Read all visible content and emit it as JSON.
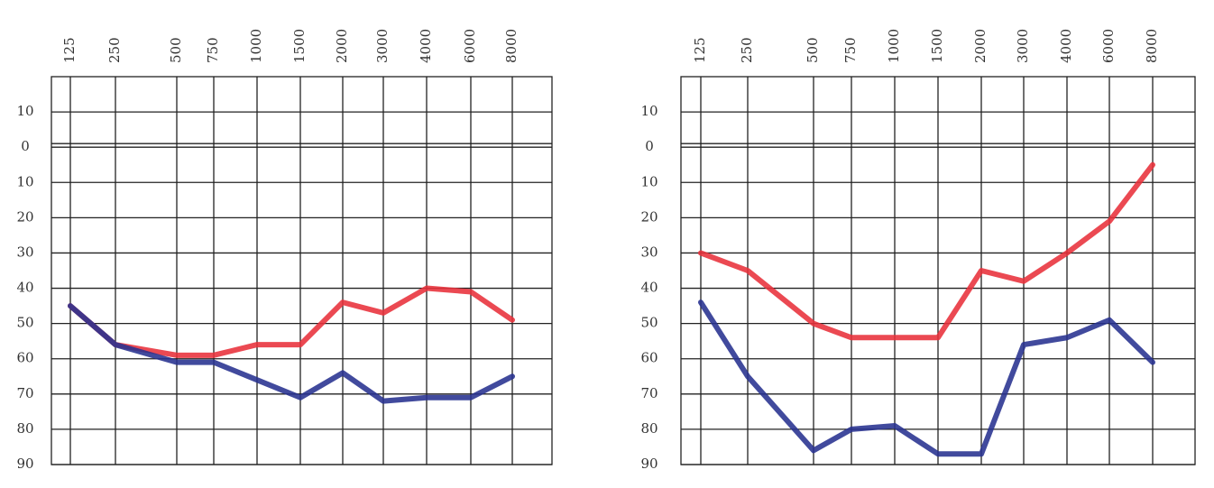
{
  "chart_data": [
    {
      "type": "line",
      "categories": [
        "125",
        "250",
        "500",
        "750",
        "1000",
        "1500",
        "2000",
        "3000",
        "4000",
        "6000",
        "8000"
      ],
      "series": [
        {
          "color": "#e8303a",
          "values": [
            45,
            56,
            59,
            59,
            56,
            56,
            44,
            47,
            40,
            41,
            49
          ]
        },
        {
          "color": "#27318f",
          "values": [
            45,
            56,
            61,
            61,
            66,
            71,
            64,
            72,
            71,
            71,
            65
          ]
        }
      ],
      "ylim": [
        -20,
        90
      ],
      "yinvert": true,
      "yticks": [
        {
          "value": -10,
          "label": "10"
        },
        0,
        10,
        20,
        30,
        40,
        50,
        60,
        70,
        80,
        90
      ],
      "grid": true
    },
    {
      "type": "line",
      "categories": [
        "125",
        "250",
        "500",
        "750",
        "1000",
        "1500",
        "2000",
        "3000",
        "4000",
        "6000",
        "8000"
      ],
      "series": [
        {
          "color": "#e8303a",
          "values": [
            30,
            35,
            50,
            54,
            54,
            54,
            35,
            38,
            30,
            21,
            5
          ]
        },
        {
          "color": "#27318f",
          "values": [
            44,
            65,
            86,
            80,
            79,
            87,
            87,
            56,
            54,
            49,
            61
          ]
        }
      ],
      "ylim": [
        -20,
        90
      ],
      "yinvert": true,
      "yticks": [
        {
          "value": -10,
          "label": "10"
        },
        0,
        10,
        20,
        30,
        40,
        50,
        60,
        70,
        80,
        90
      ],
      "grid": true
    }
  ]
}
